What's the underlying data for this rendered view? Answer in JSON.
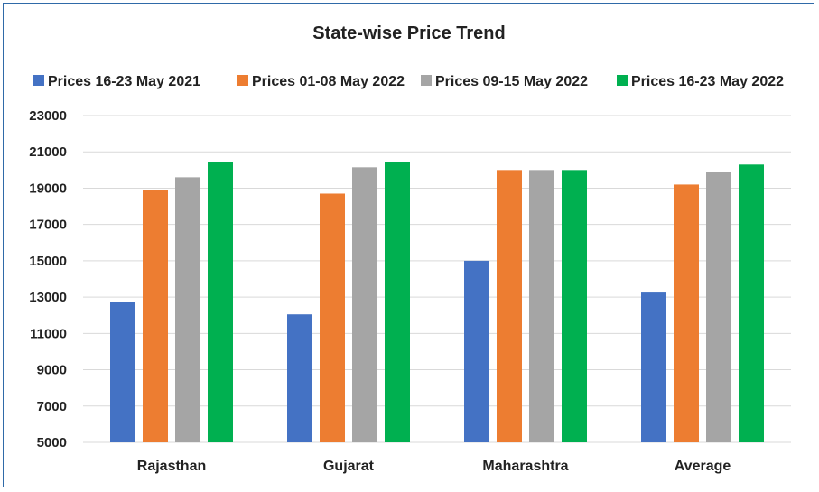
{
  "chart_data": {
    "type": "bar",
    "title": "State-wise Price Trend",
    "categories": [
      "Rajasthan",
      "Gujarat",
      "Maharashtra",
      "Average"
    ],
    "series": [
      {
        "name": "Prices 16-23 May 2021",
        "color": "#4472c4",
        "values": [
          12750,
          12050,
          15000,
          13250
        ]
      },
      {
        "name": "Prices 01-08 May 2022",
        "color": "#ed7d31",
        "values": [
          18900,
          18700,
          20000,
          19200
        ]
      },
      {
        "name": "Prices 09-15 May 2022",
        "color": "#a5a5a5",
        "values": [
          19600,
          20150,
          20000,
          19900
        ]
      },
      {
        "name": "Prices 16-23 May 2022",
        "color": "#00b050",
        "values": [
          20450,
          20450,
          20000,
          20300
        ]
      }
    ],
    "ylim": [
      5000,
      23000
    ],
    "yticks": [
      "5000",
      "7000",
      "9000",
      "11000",
      "13000",
      "15000",
      "17000",
      "19000",
      "21000",
      "23000"
    ],
    "grid": true,
    "legend_position": "top"
  }
}
